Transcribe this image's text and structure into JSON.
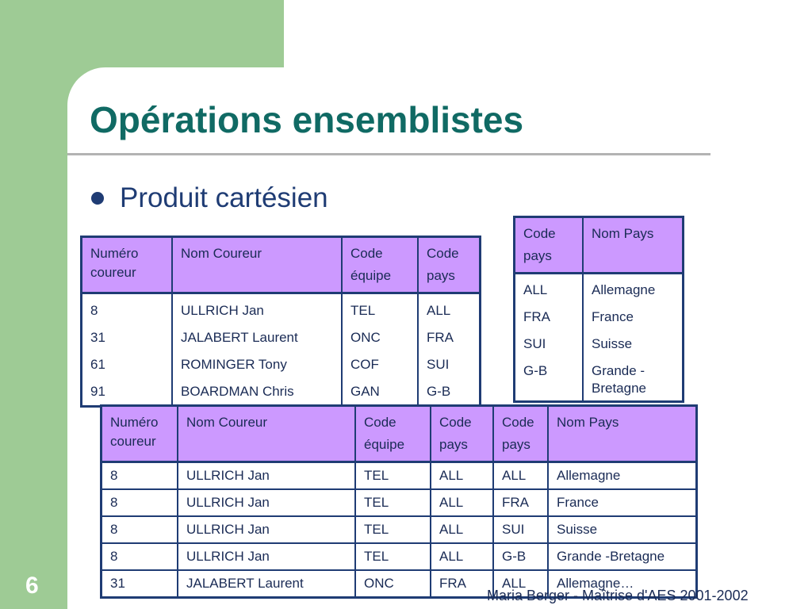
{
  "slide": {
    "title": "Opérations ensemblistes",
    "bullet": "Produit cartésien",
    "number": "6",
    "footer": "Maria Berger - Maîtrise d'AES 2001-2002"
  },
  "table_coureurs": {
    "headers": [
      "Numéro coureur",
      "Nom Coureur",
      "Code équipe",
      "Code pays"
    ],
    "rows": [
      [
        "8",
        "ULLRICH Jan",
        "TEL",
        "ALL"
      ],
      [
        "31",
        "JALABERT Laurent",
        "ONC",
        "FRA"
      ],
      [
        "61",
        "ROMINGER Tony",
        "COF",
        "SUI"
      ],
      [
        "91",
        "BOARDMAN Chris",
        "GAN",
        "G-B"
      ]
    ]
  },
  "table_pays": {
    "headers": [
      "Code pays",
      "Nom Pays"
    ],
    "rows": [
      [
        "ALL",
        "Allemagne"
      ],
      [
        "FRA",
        "France"
      ],
      [
        "SUI",
        "Suisse"
      ],
      [
        "G-B",
        "Grande - Bretagne"
      ]
    ]
  },
  "table_produit": {
    "headers": [
      "Numéro coureur",
      "Nom Coureur",
      "Code équipe",
      "Code pays",
      "Code pays",
      "Nom Pays"
    ],
    "rows": [
      [
        "8",
        "ULLRICH Jan",
        "TEL",
        "ALL",
        "ALL",
        "Allemagne"
      ],
      [
        "8",
        "ULLRICH Jan",
        "TEL",
        "ALL",
        "FRA",
        "France"
      ],
      [
        "8",
        "ULLRICH Jan",
        "TEL",
        "ALL",
        "SUI",
        "Suisse"
      ],
      [
        "8",
        "ULLRICH Jan",
        "TEL",
        "ALL",
        "G-B",
        "Grande -Bretagne"
      ],
      [
        "31",
        "JALABERT Laurent",
        "ONC",
        "FRA",
        "ALL",
        "Allemagne…"
      ]
    ]
  },
  "colors": {
    "background_green": "#9ecb95",
    "title_teal": "#106a64",
    "header_purple": "#cc99ff",
    "border_navy": "#1f3c74"
  }
}
